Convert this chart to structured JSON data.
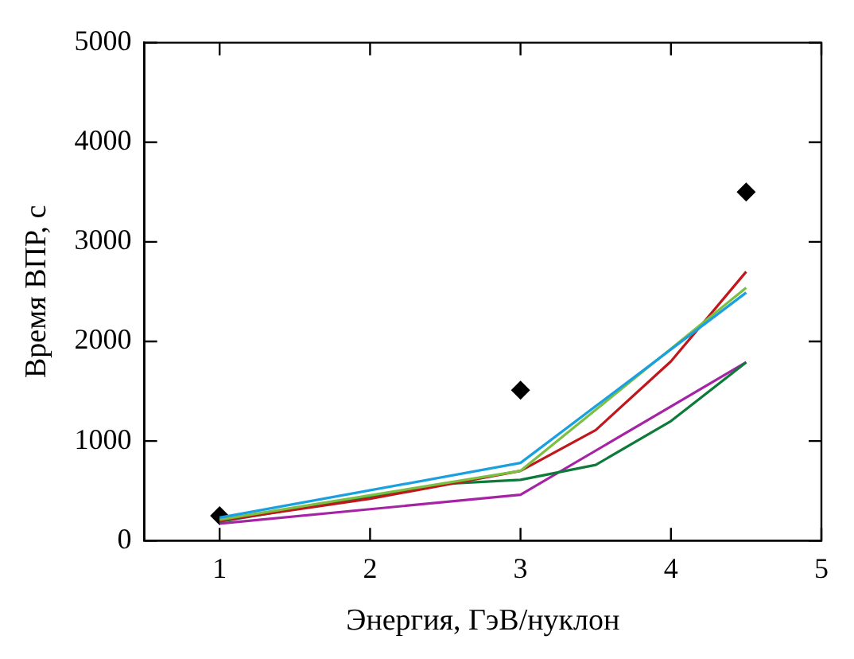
{
  "chart_data": {
    "type": "line",
    "xlabel": "Энергия, ГэВ/нуклон",
    "ylabel": "Время ВПР, с",
    "xlim": [
      0.5,
      5
    ],
    "xticks": [
      1,
      2,
      3,
      4,
      5
    ],
    "ylim": [
      0,
      5000
    ],
    "yticks": [
      0,
      1000,
      2000,
      3000,
      4000,
      5000
    ],
    "grid": false,
    "legend": false,
    "marker": "none",
    "line_style": "solid",
    "series": [
      {
        "color": "#1a9fe0",
        "x": [
          1,
          3,
          4.5
        ],
        "values": [
          230,
          780,
          2490
        ]
      },
      {
        "color": "#7ac143",
        "x": [
          1,
          3,
          4.5
        ],
        "values": [
          210,
          700,
          2540
        ]
      },
      {
        "color": "#c0171c",
        "x": [
          1,
          2,
          3,
          3.5,
          4,
          4.5
        ],
        "values": [
          200,
          420,
          700,
          1110,
          1800,
          2700
        ]
      },
      {
        "color": "#0e7a3a",
        "x": [
          1,
          2.5,
          3,
          3.5,
          4,
          4.5
        ],
        "values": [
          190,
          570,
          610,
          760,
          1200,
          1790
        ]
      },
      {
        "color": "#a424a4",
        "x": [
          1,
          3,
          4.5
        ],
        "values": [
          170,
          460,
          1790
        ]
      },
      {
        "type": "scatter",
        "marker": "diamond",
        "color": "#000000",
        "x": [
          1,
          3,
          4.5
        ],
        "values": [
          250,
          1510,
          3500
        ]
      }
    ]
  }
}
